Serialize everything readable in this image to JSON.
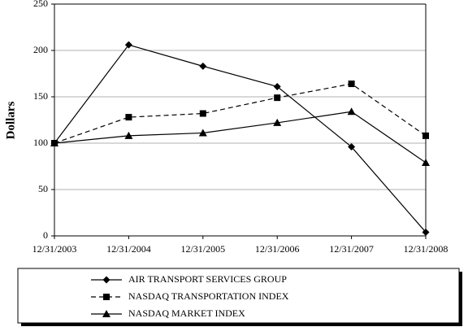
{
  "chart_data": {
    "type": "line",
    "y_label": "Dollars",
    "categories": [
      "12/31/2003",
      "12/31/2004",
      "12/31/2005",
      "12/31/2006",
      "12/31/2007",
      "12/31/2008"
    ],
    "series": [
      {
        "name": "AIR TRANSPORT SERVICES GROUP",
        "color": "#000000",
        "marker": "diamond",
        "dashed": false,
        "values": [
          100,
          206,
          183,
          161,
          96,
          4
        ]
      },
      {
        "name": "NASDAQ TRANSPORTATION INDEX",
        "color": "#000000",
        "marker": "square",
        "dashed": true,
        "values": [
          100,
          128,
          132,
          149,
          164,
          108
        ]
      },
      {
        "name": "NASDAQ MARKET INDEX",
        "color": "#000000",
        "marker": "triangle",
        "dashed": false,
        "values": [
          100,
          108,
          111,
          122,
          134,
          79
        ]
      }
    ],
    "ylim": [
      0,
      250
    ],
    "yticks": [
      0,
      50,
      100,
      150,
      200,
      250
    ],
    "grid": true
  }
}
